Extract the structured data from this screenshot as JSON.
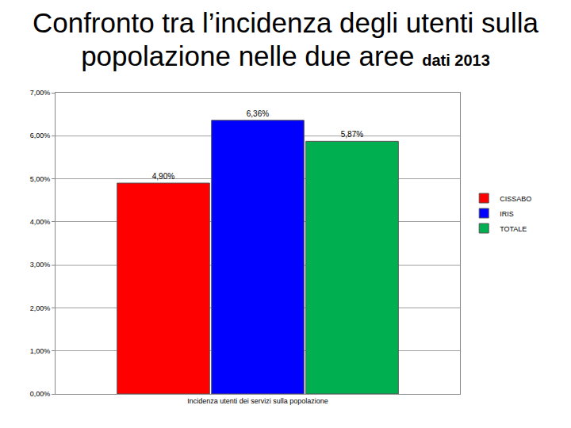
{
  "chart_data": {
    "type": "bar",
    "title": "Confronto tra l’incidenza degli utenti sulla popolazione nelle due aree",
    "subtitle": "dati 2013",
    "categories": [
      "Incidenza utenti dei servizi sulla popolazione"
    ],
    "series": [
      {
        "name": "CISSABO",
        "color": "#ff0000",
        "values": [
          4.9
        ],
        "value_labels": [
          "4,90%"
        ]
      },
      {
        "name": "IRIS",
        "color": "#0000ff",
        "values": [
          6.36
        ],
        "value_labels": [
          "6,36%"
        ]
      },
      {
        "name": "TOTALE",
        "color": "#00b050",
        "values": [
          5.87
        ],
        "value_labels": [
          "5,87%"
        ]
      }
    ],
    "ylim": [
      0,
      7
    ],
    "yticks": [
      {
        "value": 0,
        "label": "0,00%"
      },
      {
        "value": 1,
        "label": "1,00%"
      },
      {
        "value": 2,
        "label": "2,00%"
      },
      {
        "value": 3,
        "label": "3,00%"
      },
      {
        "value": 4,
        "label": "4,00%"
      },
      {
        "value": 5,
        "label": "5,00%"
      },
      {
        "value": 6,
        "label": "6,00%"
      },
      {
        "value": 7,
        "label": "7,00%"
      }
    ],
    "grid": true,
    "legend": "right",
    "data_labels": true
  }
}
